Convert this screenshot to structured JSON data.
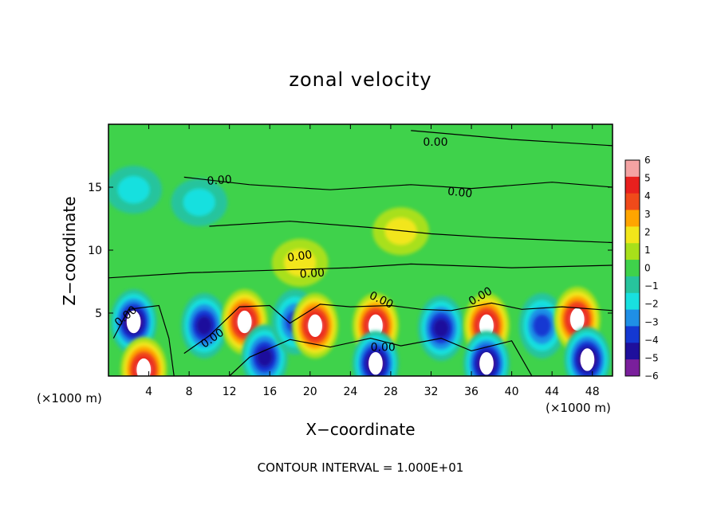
{
  "chart_data": {
    "type": "heatmap",
    "title": "zonal velocity",
    "xlabel": "X−coordinate",
    "ylabel": "Z−coordinate",
    "x_unit": "(×1000 m)",
    "z_unit": "(×1000 m)",
    "xlim": [
      0,
      50
    ],
    "ylim": [
      0,
      20
    ],
    "x_ticks": [
      4,
      8,
      12,
      16,
      20,
      24,
      28,
      32,
      36,
      40,
      44,
      48
    ],
    "y_ticks": [
      5,
      10,
      15
    ],
    "colorbar": {
      "levels": [
        6,
        5,
        4,
        3,
        2,
        1,
        0,
        -1,
        -2,
        -3,
        -4,
        -5,
        -6
      ],
      "level_labels": [
        "6",
        "5",
        "4",
        "3",
        "2",
        "1",
        "0",
        "−1",
        "−2",
        "−3",
        "−4",
        "−5",
        "−6"
      ],
      "colors": [
        "#f4a3a3",
        "#e8201e",
        "#f04a1a",
        "#ffa500",
        "#f2e61a",
        "#a8e01a",
        "#3fd24b",
        "#27c49d",
        "#18e0df",
        "#1f8fe6",
        "#1438d2",
        "#1e0f9c",
        "#7a1f9c"
      ]
    },
    "contour_label": "0.00",
    "contour_interval_text": "CONTOUR INTERVAL = 1.000E+01",
    "field_features": [
      {
        "x": 2.5,
        "z": 4.3,
        "value": -6
      },
      {
        "x": 3.5,
        "z": 0.5,
        "value": 6
      },
      {
        "x": 9.5,
        "z": 4.0,
        "value": -5
      },
      {
        "x": 13.5,
        "z": 4.3,
        "value": 6
      },
      {
        "x": 15.5,
        "z": 1.5,
        "value": -5
      },
      {
        "x": 18.5,
        "z": 4.3,
        "value": -4
      },
      {
        "x": 20.5,
        "z": 4.0,
        "value": 6
      },
      {
        "x": 26.5,
        "z": 4.0,
        "value": 6
      },
      {
        "x": 26.5,
        "z": 1.0,
        "value": -6
      },
      {
        "x": 33.0,
        "z": 3.8,
        "value": -5
      },
      {
        "x": 37.5,
        "z": 4.0,
        "value": 6
      },
      {
        "x": 37.5,
        "z": 1.0,
        "value": -6
      },
      {
        "x": 43.0,
        "z": 4.0,
        "value": -4
      },
      {
        "x": 46.5,
        "z": 4.5,
        "value": 6
      },
      {
        "x": 47.5,
        "z": 1.3,
        "value": -6
      },
      {
        "x": 2.5,
        "z": 14.8,
        "value": -2
      },
      {
        "x": 9.0,
        "z": 13.8,
        "value": -2
      },
      {
        "x": 29.0,
        "z": 11.5,
        "value": 2
      },
      {
        "x": 19.0,
        "z": 9.0,
        "value": 2
      }
    ]
  }
}
